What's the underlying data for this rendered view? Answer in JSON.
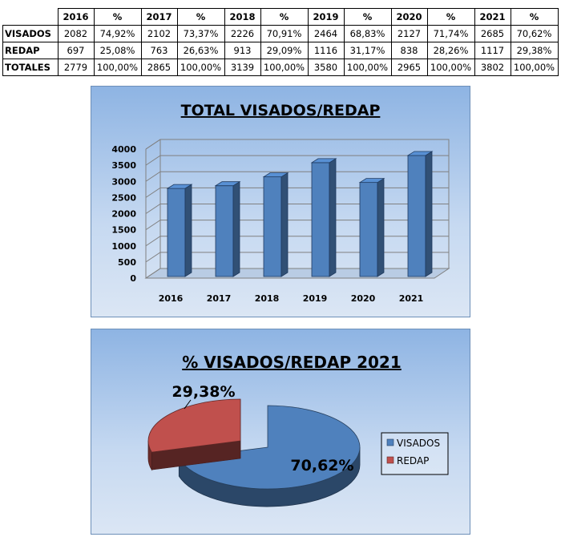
{
  "table": {
    "years": [
      "2016",
      "2017",
      "2018",
      "2019",
      "2020",
      "2021"
    ],
    "pct_header": "%",
    "rows": [
      {
        "label": "VISADOS",
        "cells": [
          "2082",
          "74,92%",
          "2102",
          "73,37%",
          "2226",
          "70,91%",
          "2464",
          "68,83%",
          "2127",
          "71,74%",
          "2685",
          "70,62%"
        ]
      },
      {
        "label": "REDAP",
        "cells": [
          "697",
          "25,08%",
          "763",
          "26,63%",
          "913",
          "29,09%",
          "1116",
          "31,17%",
          "838",
          "28,26%",
          "1117",
          "29,38%"
        ]
      },
      {
        "label": "TOTALES",
        "cells": [
          "2779",
          "100,00%",
          "2865",
          "100,00%",
          "3139",
          "100,00%",
          "3580",
          "100,00%",
          "2965",
          "100,00%",
          "3802",
          "100,00%"
        ]
      }
    ]
  },
  "chart_data": [
    {
      "type": "bar",
      "title": "TOTAL VISADOS/REDAP",
      "categories": [
        "2016",
        "2017",
        "2018",
        "2019",
        "2020",
        "2021"
      ],
      "values": [
        2779,
        2865,
        3139,
        3580,
        2965,
        3802
      ],
      "ylim": [
        0,
        4000
      ],
      "yticks": [
        0,
        500,
        1000,
        1500,
        2000,
        2500,
        3000,
        3500,
        4000
      ],
      "grid": true,
      "legend": "none",
      "bar_color": "#4f81bd"
    },
    {
      "type": "pie",
      "title": "% VISADOS/REDAP 2021",
      "slices": [
        {
          "label": "VISADOS",
          "value": 70.62,
          "display": "70,62%",
          "color": "#4f81bd"
        },
        {
          "label": "REDAP",
          "value": 29.38,
          "display": "29,38%",
          "color": "#c0504d"
        }
      ],
      "legend": "right"
    }
  ]
}
